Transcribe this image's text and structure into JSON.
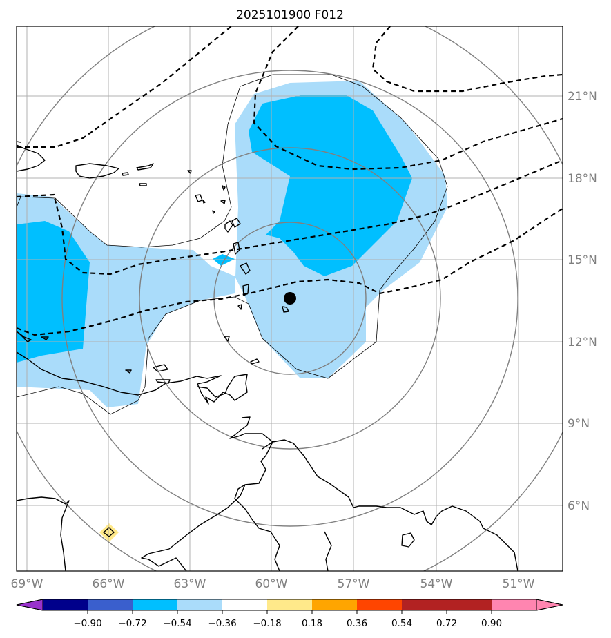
{
  "title": "2025101900 F012",
  "map": {
    "lon_labels": [
      "69°W",
      "66°W",
      "63°W",
      "60°W",
      "57°W",
      "54°W",
      "51°W"
    ],
    "lat_labels": [
      "21°N",
      "18°N",
      "15°N",
      "12°N",
      "9°N",
      "6°N"
    ],
    "storm_center_marker": "black dot near 59.3°W, 13.6°N",
    "range_rings": "concentric grey circles around storm center",
    "fill_colors": {
      "neg_0.36_to_0.18": "#aadcfa",
      "neg_0.54_to_0.36": "#00bfff",
      "pos_0.18_to_0.36": "#ffe98a"
    }
  },
  "colorbar": {
    "ticks": [
      "−0.90",
      "−0.72",
      "−0.54",
      "−0.36",
      "−0.18",
      "0.18",
      "0.36",
      "0.54",
      "0.72",
      "0.90"
    ],
    "colors": [
      "#9932cc",
      "#00008b",
      "#3a5fcd",
      "#00bfff",
      "#aadcfa",
      "#ffffff",
      "#ffe98a",
      "#ffa500",
      "#ff4500",
      "#b22222",
      "#ff85b0"
    ]
  }
}
